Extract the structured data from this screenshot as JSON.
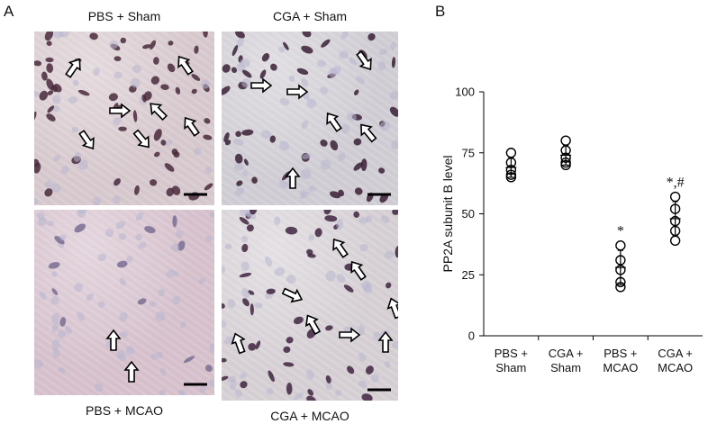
{
  "figure": {
    "panel_a_letter": "A",
    "panel_b_letter": "B"
  },
  "panel_a": {
    "tiles": [
      {
        "caption": "PBS + Sham",
        "bg": "#d9cbd0",
        "cell_color": "#4a2a3c"
      },
      {
        "caption": "CGA + Sham",
        "bg": "#d2cfd6",
        "cell_color": "#3a2036"
      },
      {
        "caption": "PBS + MCAO",
        "bg": "#d8c3cf",
        "cell_color": "#7a6d93"
      },
      {
        "caption": "CGA + MCAO",
        "bg": "#d8d2d7",
        "cell_color": "#3e2440"
      }
    ]
  },
  "chart_data": {
    "type": "scatter",
    "ylabel": "PP2A subunit B  level",
    "ylim": [
      0,
      100
    ],
    "yticks": [
      "0",
      "25",
      "50",
      "75",
      "100"
    ],
    "categories": [
      "PBS + Sham",
      "CGA + Sham",
      "PBS + MCAO",
      "CGA + MCAO"
    ],
    "category_lines": [
      [
        "PBS +",
        "Sham"
      ],
      [
        "CGA +",
        "Sham"
      ],
      [
        "PBS +",
        "MCAO"
      ],
      [
        "CGA +",
        "MCAO"
      ]
    ],
    "points": [
      [
        65,
        66,
        68,
        71,
        75
      ],
      [
        70,
        71,
        73,
        76,
        80
      ],
      [
        20,
        22,
        27,
        31,
        37
      ],
      [
        39,
        43,
        47,
        52,
        57
      ]
    ],
    "mean": [
      69,
      74,
      28,
      48
    ],
    "sd": [
      4,
      4,
      7,
      7
    ],
    "significance": [
      "",
      "",
      "*",
      "*,#"
    ],
    "marker": "open-circle",
    "grid": false
  }
}
